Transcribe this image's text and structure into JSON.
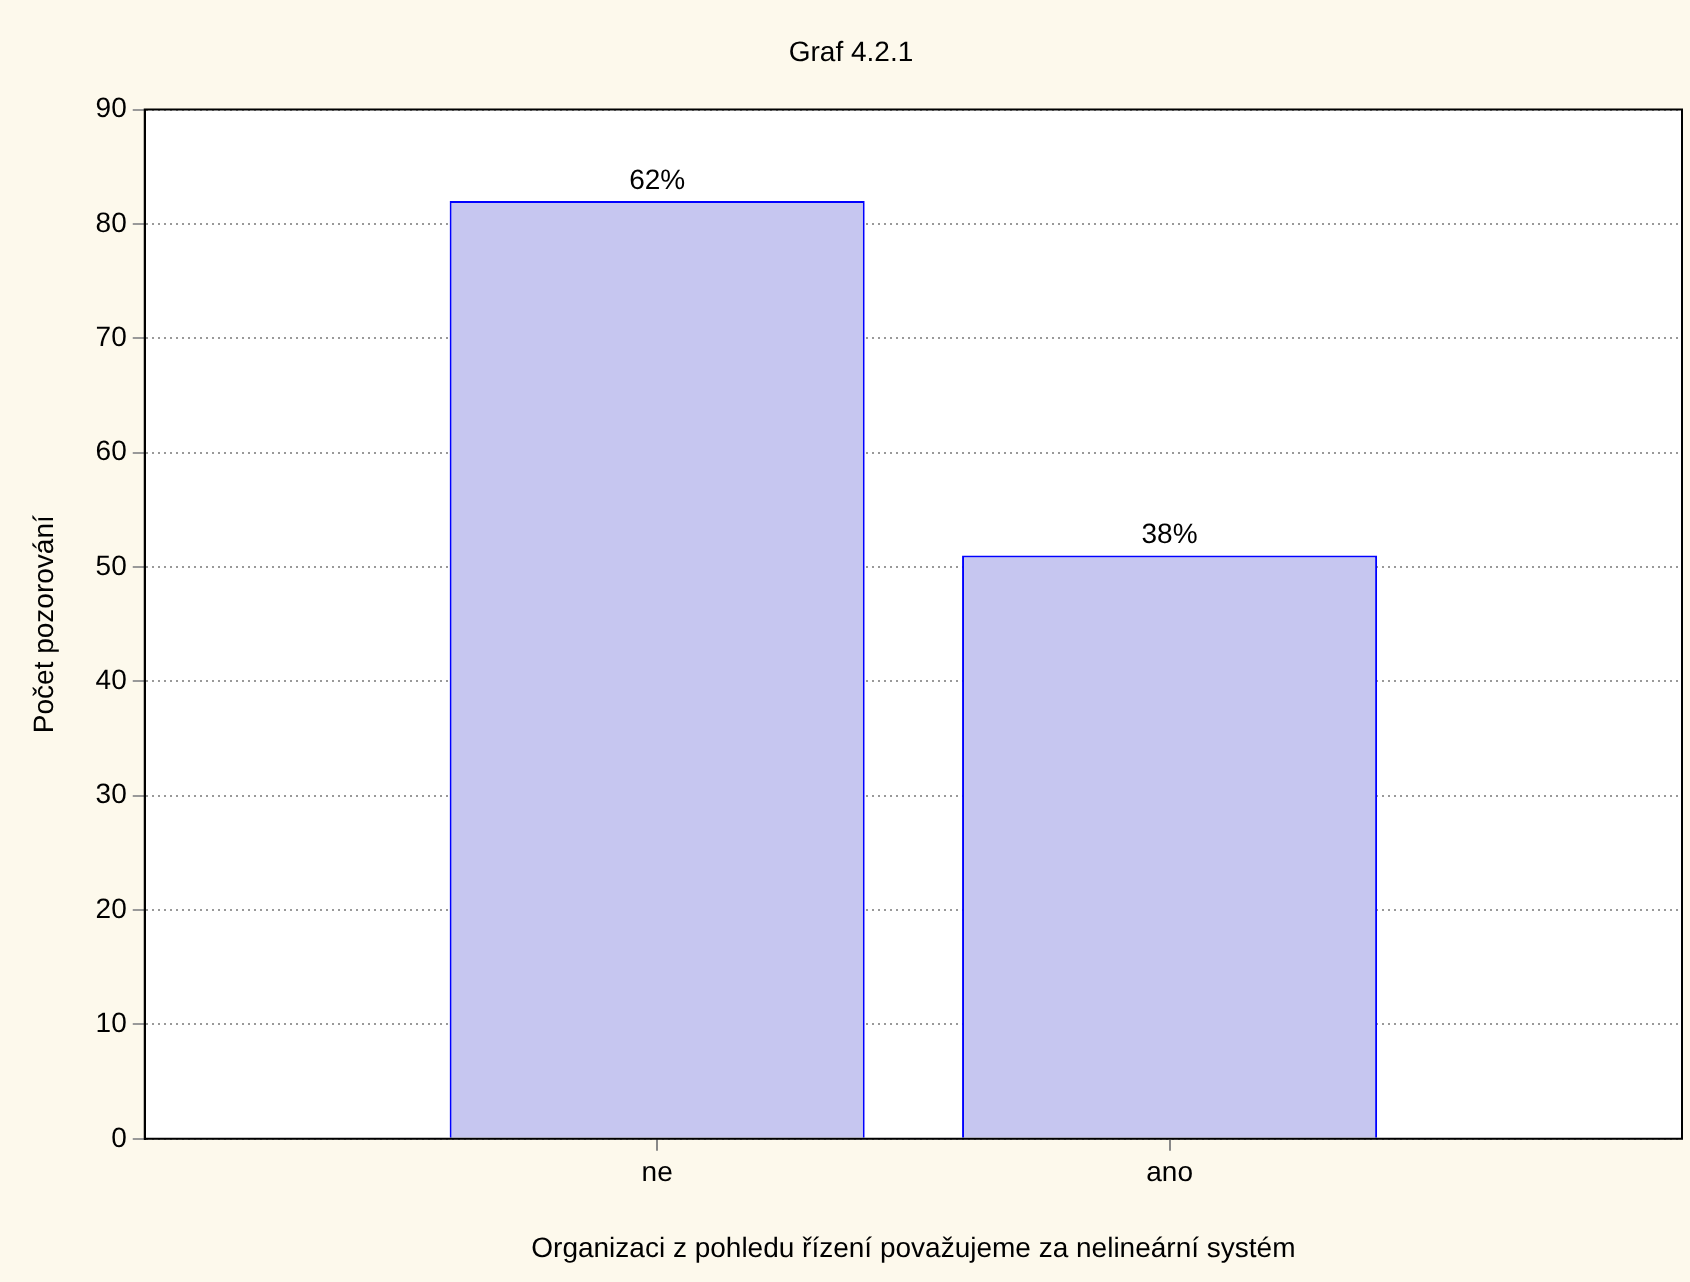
{
  "chart_data": {
    "type": "bar",
    "title": "Graf 4.2.1",
    "xlabel": "Organizaci z pohledu řízení považujeme za nelineární systém",
    "ylabel": "Počet pozorování",
    "categories": [
      "ne",
      "ano"
    ],
    "values": [
      82,
      51
    ],
    "annotations": [
      {
        "text": "62%",
        "x": "ne",
        "y": 82
      },
      {
        "text": "38%",
        "x": "ano",
        "y": 51
      }
    ],
    "color": "#c6c6f0",
    "ylim": [
      0,
      90
    ],
    "yticks": [
      0,
      10,
      20,
      30,
      40,
      50,
      60,
      70,
      80,
      90
    ],
    "grid": "y",
    "legend": false
  }
}
